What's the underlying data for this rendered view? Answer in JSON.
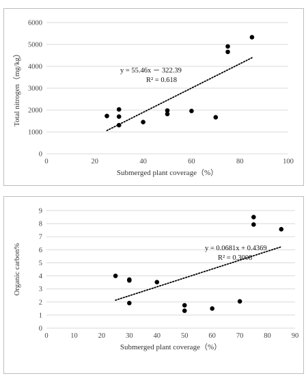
{
  "chart_data": [
    {
      "type": "scatter",
      "title": "",
      "xlabel": "Submerged plant coverage（%）",
      "ylabel": "Total nitrogen（mg/kg）",
      "xlim": [
        0,
        100
      ],
      "ylim": [
        0,
        6000
      ],
      "xticks": [
        0,
        20,
        40,
        60,
        80,
        100
      ],
      "yticks": [
        0,
        1000,
        2000,
        3000,
        4000,
        5000,
        6000
      ],
      "grid": "horizontal",
      "point_color": "#000000",
      "series": [
        {
          "x": [
            25,
            30,
            30,
            30,
            40,
            50,
            50,
            60,
            70,
            75,
            75,
            85
          ],
          "y": [
            1730,
            2030,
            1700,
            1310,
            1450,
            1980,
            1820,
            1960,
            1670,
            4910,
            4660,
            5330
          ]
        }
      ],
      "trendline": {
        "x_range": [
          25,
          85
        ],
        "slope": 55.46,
        "intercept": -322.39,
        "style": "dotted",
        "equation": "y = 55.46x － 322.39",
        "r2": "R² = 0.618"
      }
    },
    {
      "type": "scatter",
      "title": "",
      "xlabel": "Submerged plant coverage（%）",
      "ylabel": "Organic carbon%",
      "xlim": [
        0,
        90
      ],
      "ylim": [
        0,
        9
      ],
      "xticks": [
        0,
        10,
        20,
        30,
        40,
        50,
        60,
        70,
        80,
        90
      ],
      "yticks": [
        0,
        1,
        2,
        3,
        4,
        5,
        6,
        7,
        8,
        9
      ],
      "grid": "horizontal",
      "point_color": "#000000",
      "series": [
        {
          "x": [
            25,
            30,
            30,
            30,
            40,
            50,
            50,
            60,
            70,
            75,
            75,
            85
          ],
          "y": [
            4.0,
            3.72,
            3.65,
            1.92,
            3.52,
            1.75,
            1.33,
            1.5,
            2.05,
            8.5,
            7.93,
            7.57
          ]
        }
      ],
      "trendline": {
        "x_range": [
          25,
          85
        ],
        "slope": 0.0681,
        "intercept": 0.4369,
        "style": "dotted",
        "equation": "y = 0.0681x + 0.4369",
        "r2": "R² = 0.3008"
      }
    }
  ]
}
